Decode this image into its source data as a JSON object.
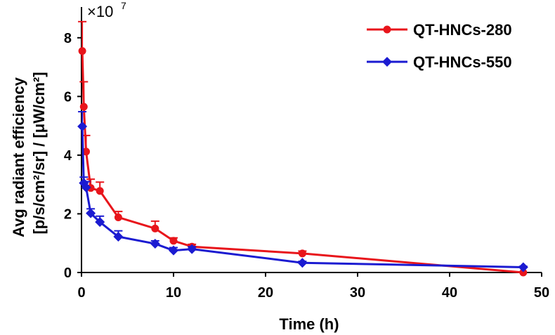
{
  "chart_data": {
    "type": "line",
    "xlabel": "Time (h)",
    "ylabel_line1": "Avg radiant efficiency",
    "ylabel_line2": "[p/s/cm²/sr] / [μW/cm²]",
    "y_multiplier": "×10",
    "y_multiplier_exp": "7",
    "xlim": [
      0,
      50
    ],
    "ylim": [
      0,
      9
    ],
    "x_ticks": [
      0,
      10,
      20,
      30,
      40,
      50
    ],
    "y_ticks": [
      0,
      2,
      4,
      6,
      8
    ],
    "grid": false,
    "legend_position": "top-right",
    "series": [
      {
        "name": "QT-HNCs-280",
        "color": "#e8151b",
        "marker": "circle",
        "x": [
          0.083,
          0.25,
          0.5,
          1,
          2,
          4,
          8,
          10,
          12,
          24,
          48
        ],
        "y": [
          7.55,
          5.65,
          4.12,
          2.88,
          2.78,
          1.88,
          1.5,
          1.08,
          0.88,
          0.65,
          0.0
        ],
        "err": [
          1.0,
          0.85,
          0.55,
          0.3,
          0.3,
          0.2,
          0.25,
          0.1,
          0.08,
          0.08,
          0.0
        ]
      },
      {
        "name": "QT-HNCs-550",
        "color": "#1b1bd1",
        "marker": "diamond",
        "x": [
          0.083,
          0.25,
          0.5,
          1,
          2,
          4,
          8,
          10,
          12,
          24,
          48
        ],
        "y": [
          4.98,
          3.05,
          2.9,
          2.02,
          1.72,
          1.22,
          0.98,
          0.75,
          0.8,
          0.33,
          0.18
        ],
        "err": [
          0.5,
          0.2,
          0.2,
          0.15,
          0.2,
          0.2,
          0.1,
          0.1,
          0.08,
          0.05,
          0.03
        ]
      }
    ]
  }
}
